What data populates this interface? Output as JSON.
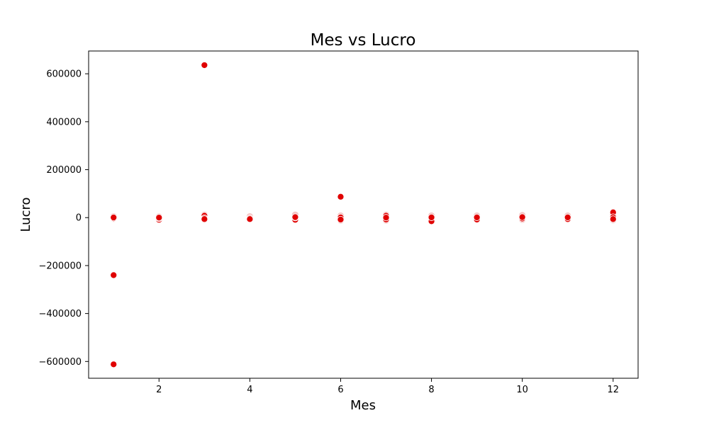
{
  "chart_data": {
    "type": "scatter",
    "title": "Mes vs Lucro",
    "xlabel": "Mes",
    "ylabel": "Lucro",
    "xlim": [
      0.45,
      12.55
    ],
    "ylim": [
      -670000,
      695000
    ],
    "xticks": [
      2,
      4,
      6,
      8,
      10,
      12
    ],
    "yticks": [
      -600000,
      -400000,
      -200000,
      0,
      200000,
      400000,
      600000
    ],
    "grid": false,
    "legend": "none",
    "colors": {
      "point": "#e00000",
      "point_edge": "#ffffff",
      "faint_point": "#f4c4c4"
    },
    "series": [
      {
        "x": [
          1,
          1,
          1,
          1,
          2,
          2,
          2,
          3,
          3,
          3,
          3,
          4,
          4,
          5,
          5,
          5,
          6,
          6,
          6,
          7,
          7,
          7,
          8,
          8,
          9,
          9,
          10,
          10,
          11,
          11,
          12,
          12,
          12
        ],
        "values": [
          -612000,
          -240000,
          -3000,
          500,
          -9000,
          -3000,
          0,
          636000,
          8000,
          -2000,
          -6000,
          -3000,
          -6000,
          -9000,
          0,
          2000,
          87000,
          1000,
          -8000,
          8000,
          -8000,
          0,
          -15000,
          1000,
          -8000,
          1000,
          -4000,
          2000,
          -6000,
          1000,
          22000,
          2000,
          -6000
        ]
      }
    ],
    "faint_series": [
      {
        "x": [
          1,
          1,
          2,
          2,
          3,
          3,
          4,
          4,
          5,
          5,
          6,
          6,
          7,
          7,
          8,
          8,
          9,
          9,
          10,
          10,
          11,
          11,
          12,
          12
        ],
        "values": [
          5000,
          -5000,
          4000,
          -4000,
          12000,
          -8000,
          5000,
          -5000,
          12000,
          -8000,
          8000,
          -12000,
          12000,
          -12000,
          8000,
          -8000,
          8000,
          -8000,
          10000,
          -8000,
          8000,
          -8000,
          10000,
          -10000
        ]
      }
    ]
  }
}
